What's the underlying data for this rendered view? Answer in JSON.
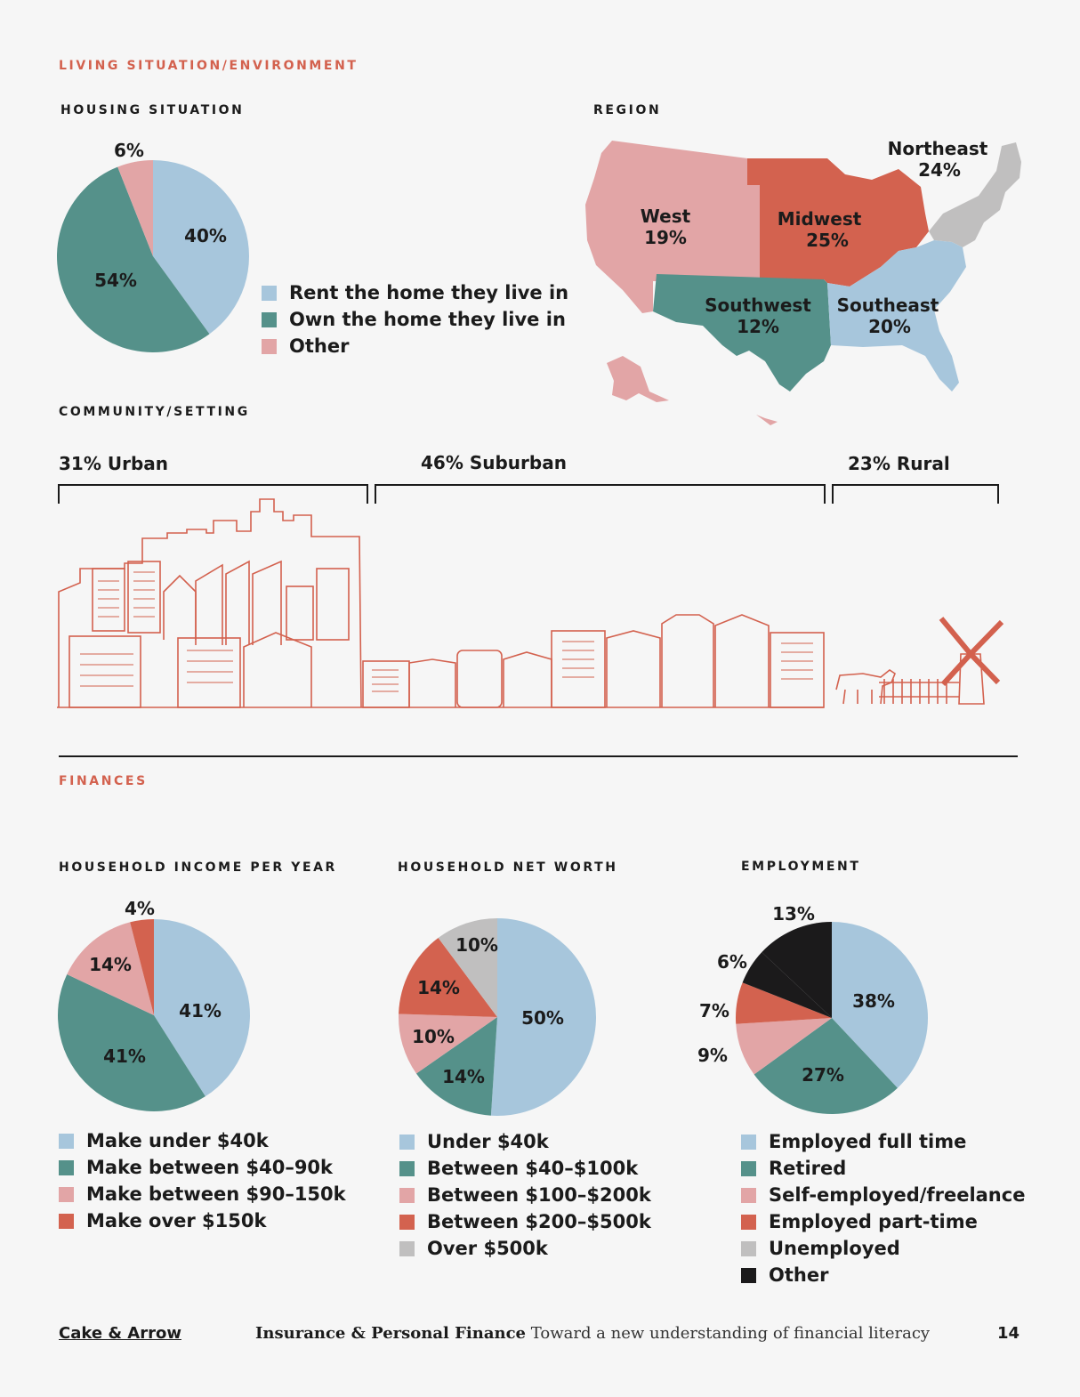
{
  "sections": {
    "living": "LIVING SITUATION/ENVIRONMENT",
    "finances": "FINANCES"
  },
  "colors": {
    "blue": "#a7c6dc",
    "teal": "#55918a",
    "pink": "#e2a5a6",
    "red": "#d3624f",
    "gray": "#c0bfbf",
    "black": "#1b1a1b",
    "line": "#d3614e"
  },
  "community": {
    "title": "COMMUNITY/SETTING",
    "urban": "31% Urban",
    "suburban": "46% Suburban",
    "rural": "23% Rural"
  },
  "chart_data": [
    {
      "type": "pie",
      "title": "HOUSING SITUATION",
      "categories": [
        "Rent the home they live in",
        "Own the home they live in",
        "Other"
      ],
      "values": [
        40,
        54,
        6
      ],
      "labels": [
        "40%",
        "54%",
        "6%"
      ]
    },
    {
      "type": "map",
      "title": "REGION",
      "categories": [
        "West",
        "Midwest",
        "Northeast",
        "Southwest",
        "Southeast"
      ],
      "values": [
        19,
        25,
        24,
        12,
        20
      ],
      "labels": [
        "19%",
        "25%",
        "24%",
        "12%",
        "20%"
      ]
    },
    {
      "type": "pie",
      "title": "HOUSEHOLD INCOME PER YEAR",
      "categories": [
        "Make under $40k",
        "Make between $40–90k",
        "Make between $90–150k",
        "Make over $150k"
      ],
      "values": [
        41,
        41,
        14,
        4
      ],
      "labels": [
        "41%",
        "41%",
        "14%",
        "4%"
      ]
    },
    {
      "type": "pie",
      "title": "HOUSEHOLD NET WORTH",
      "categories": [
        "Under $40k",
        "Between $40–$100k",
        "Between $100–$200k",
        "Between $200–$500k",
        "Over $500k"
      ],
      "values": [
        50,
        14,
        10,
        14,
        10
      ],
      "labels": [
        "50%",
        "14%",
        "10%",
        "14%",
        "10%"
      ]
    },
    {
      "type": "pie",
      "title": "EMPLOYMENT",
      "categories": [
        "Employed full time",
        "Retired",
        "Self-employed/freelance",
        "Employed part-time",
        "Unemployed",
        "Other"
      ],
      "values": [
        38,
        27,
        9,
        7,
        6,
        13
      ],
      "labels": [
        "38%",
        "27%",
        "9%",
        "7%",
        "6%",
        "13%"
      ]
    }
  ],
  "footer": {
    "brand": "Cake & Arrow",
    "title": "Insurance & Personal Finance",
    "subtitle": "Toward a new understanding of financial literacy",
    "page": "14"
  }
}
